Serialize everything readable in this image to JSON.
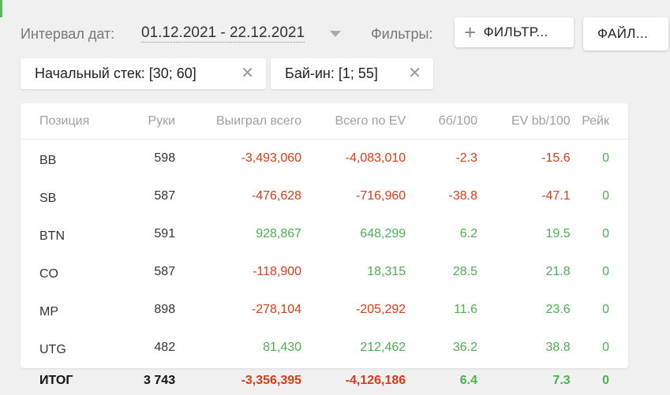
{
  "header": {
    "interval_label": "Интервал дат:",
    "date_range": "01.12.2021 - 22.12.2021",
    "filters_label": "Фильтры:",
    "filter_button": "ФИЛЬТР...",
    "file_button": "ФАЙЛ..."
  },
  "chips": [
    {
      "label": "Начальный стек: [30; 60]"
    },
    {
      "label": "Бай-ин: [1; 55]"
    }
  ],
  "icons": {
    "dropdown": "chevron-down-icon",
    "add": "plus-icon",
    "remove": "close-icon"
  },
  "colors": {
    "negative": "#d83b17",
    "positive": "#4caf50",
    "accent_edge": "#5cb85c"
  },
  "table": {
    "columns": [
      "Позиция",
      "Руки",
      "Выиграл всего",
      "Всего по EV",
      "бб/100",
      "EV bb/100",
      "Рейк"
    ],
    "rows": [
      {
        "pos": "BB",
        "hands": "598",
        "won": "-3,493,060",
        "ev": "-4,083,010",
        "bb100": "-2.3",
        "evbb100": "-15.6",
        "rake": "0"
      },
      {
        "pos": "SB",
        "hands": "587",
        "won": "-476,628",
        "ev": "-716,960",
        "bb100": "-38.8",
        "evbb100": "-47.1",
        "rake": "0"
      },
      {
        "pos": "BTN",
        "hands": "591",
        "won": "928,867",
        "ev": "648,299",
        "bb100": "6.2",
        "evbb100": "19.5",
        "rake": "0"
      },
      {
        "pos": "CO",
        "hands": "587",
        "won": "-118,900",
        "ev": "18,315",
        "bb100": "28.5",
        "evbb100": "21.8",
        "rake": "0"
      },
      {
        "pos": "MP",
        "hands": "898",
        "won": "-278,104",
        "ev": "-205,292",
        "bb100": "11.6",
        "evbb100": "23.6",
        "rake": "0"
      },
      {
        "pos": "UTG",
        "hands": "482",
        "won": "81,430",
        "ev": "212,462",
        "bb100": "36.2",
        "evbb100": "38.8",
        "rake": "0"
      }
    ],
    "total": {
      "pos": "ИТОГ",
      "hands": "3 743",
      "won": "-3,356,395",
      "ev": "-4,126,186",
      "bb100": "6.4",
      "evbb100": "7.3",
      "rake": "0"
    }
  }
}
